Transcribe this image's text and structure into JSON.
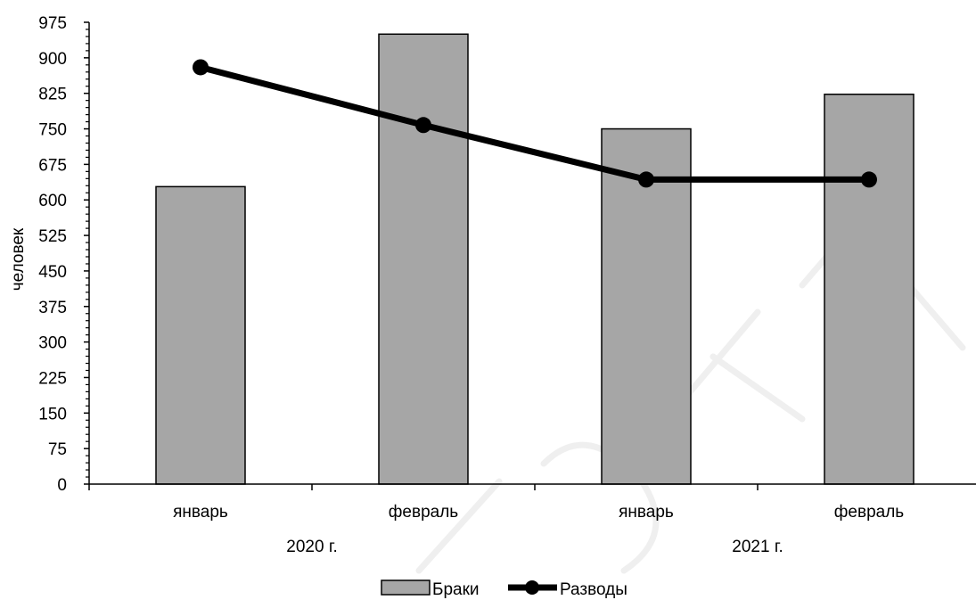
{
  "chart_data": {
    "type": "bar",
    "title": "",
    "xlabel": "",
    "ylabel": "человек",
    "ylim": [
      0,
      975
    ],
    "ytick_step": 75,
    "yticks": [
      "0",
      "75",
      "150",
      "225",
      "300",
      "375",
      "450",
      "525",
      "600",
      "675",
      "750",
      "825",
      "900",
      "975"
    ],
    "categories": [
      "январь",
      "февраль",
      "январь",
      "февраль"
    ],
    "groups": [
      {
        "label": "2020 г.",
        "span": [
          0,
          1
        ]
      },
      {
        "label": "2021 г.",
        "span": [
          2,
          3
        ]
      }
    ],
    "series": [
      {
        "name": "Браки",
        "kind": "bar",
        "color": "#a6a6a6",
        "values": [
          628,
          950,
          750,
          823
        ]
      },
      {
        "name": "Разводы",
        "kind": "line",
        "color": "#000000",
        "values": [
          880,
          758,
          643,
          643
        ]
      }
    ],
    "grid": false,
    "legend_position": "bottom-center"
  }
}
